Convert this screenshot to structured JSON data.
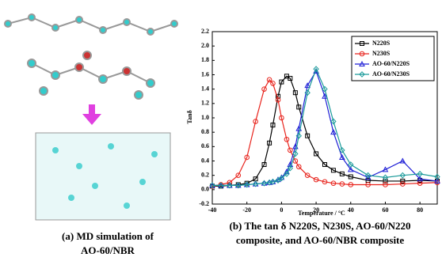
{
  "figure": {
    "left_caption": [
      "(a) MD simulation of",
      "AO-60/NBR"
    ],
    "right_caption": [
      "(b) The tan δ N220S, N230S, AO-60/N220",
      "composite, and AO-60/NBR composite"
    ]
  },
  "chart_data": {
    "type": "line",
    "xlabel": "Temperature / °C",
    "ylabel": "Tanδ",
    "x": [
      -40,
      -35,
      -30,
      -25,
      -20,
      -15,
      -10,
      -7,
      -5,
      -2,
      0,
      3,
      5,
      8,
      10,
      15,
      20,
      25,
      30,
      35,
      40,
      50,
      60,
      70,
      80,
      90
    ],
    "series": [
      {
        "name": "N220S",
        "color": "#000000",
        "marker": "square",
        "values": [
          0.05,
          0.05,
          0.06,
          0.07,
          0.09,
          0.15,
          0.35,
          0.65,
          0.9,
          1.3,
          1.5,
          1.58,
          1.55,
          1.35,
          1.15,
          0.75,
          0.5,
          0.35,
          0.27,
          0.22,
          0.18,
          0.13,
          0.12,
          0.12,
          0.13,
          0.12
        ]
      },
      {
        "name": "N230S",
        "color": "#e8231c",
        "marker": "circle",
        "values": [
          0.05,
          0.07,
          0.1,
          0.2,
          0.45,
          0.95,
          1.4,
          1.53,
          1.48,
          1.25,
          1.0,
          0.7,
          0.55,
          0.4,
          0.32,
          0.2,
          0.14,
          0.11,
          0.09,
          0.08,
          0.07,
          0.07,
          0.07,
          0.08,
          0.09,
          0.1
        ]
      },
      {
        "name": "AO-60/N220S",
        "color": "#1f1fd6",
        "marker": "triangle",
        "values": [
          0.06,
          0.06,
          0.06,
          0.06,
          0.07,
          0.08,
          0.09,
          0.1,
          0.11,
          0.14,
          0.17,
          0.25,
          0.35,
          0.6,
          0.85,
          1.45,
          1.65,
          1.3,
          0.8,
          0.45,
          0.28,
          0.17,
          0.28,
          0.4,
          0.15,
          0.12
        ]
      },
      {
        "name": "AO-60/N230S",
        "color": "#1a9a9a",
        "marker": "diamond",
        "values": [
          0.06,
          0.06,
          0.06,
          0.06,
          0.07,
          0.08,
          0.09,
          0.1,
          0.11,
          0.13,
          0.16,
          0.22,
          0.3,
          0.5,
          0.75,
          1.35,
          1.68,
          1.4,
          0.95,
          0.55,
          0.35,
          0.2,
          0.17,
          0.2,
          0.22,
          0.18
        ]
      }
    ],
    "xlim": [
      -40,
      90
    ],
    "xticks": [
      -40,
      -20,
      0,
      20,
      40,
      60,
      80
    ],
    "ylim": [
      -0.2,
      2.2
    ],
    "yticks": [
      -0.2,
      {
        "value": 0,
        "label": "0.0"
      },
      0.2,
      0.4,
      0.6,
      0.8,
      {
        "value": 1,
        "label": "1.0"
      },
      1.2,
      1.4,
      1.6,
      1.8,
      {
        "value": 2,
        "label": "2.0"
      },
      2.2
    ],
    "legend": "upper-right"
  }
}
